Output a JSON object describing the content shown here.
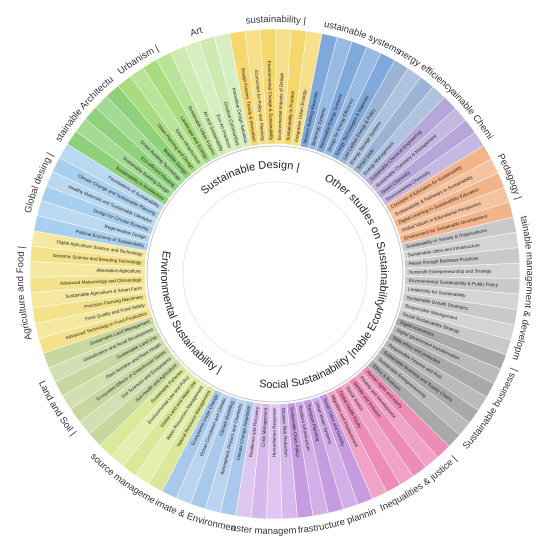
{
  "domains": [
    {
      "label": "Sustainable Design |",
      "groups": [
        {
          "label": "Sustainable Architecture |",
          "color": "#8fd17a",
          "items": [
            "Sustainability in Architecture",
            "Sustainable Building Design",
            "Eco-efficient Housing",
            "Green Building Technology",
            "Biophilic Design"
          ]
        },
        {
          "label": "Urbanism |",
          "color": "#a8dc7e",
          "items": [
            "Urban Planning and Design",
            "Green Infrastructure",
            "Landscape and Ecology",
            "Sustainable Urban Futures"
          ]
        },
        {
          "label": "Art",
          "color": "#cdeab0",
          "items": [
            "Art and Sustainability",
            "Eco-Art Practices",
            "Creative Communities",
            "Innovative Design Solutions"
          ]
        },
        {
          "label": "sustainability |",
          "color": "#f5d76e",
          "items": [
            "Design Futures, Trends & Innovation",
            "Economics for Policy and Planning",
            "Environmental Change & Sustainability",
            "Environmental Impacts of Design",
            "Sustainability in Practice",
            "Integrative Urban Ecology"
          ]
        },
        {
          "label": "Sustainable systems |",
          "color": "#7fa9dc",
          "items": [
            "Modern Building Materials",
            "Bioenergy Systems",
            "Renewable Energy Systems",
            "Design for Energy Efficiency",
            "Energy Technologies & Materials"
          ]
        }
      ]
    },
    {
      "label": "Other studies on Sustainability |",
      "groups": [
        {
          "label": "Energy efficiency |",
          "color": "#9bb4d6",
          "items": [
            "Low Carbon Energy & Policy",
            "Energy Storage Systems",
            "Smart Grids",
            "Energy Management"
          ]
        },
        {
          "label": "Sustainable Chemistry |",
          "color": "#b7a6d9",
          "items": [
            "Sustainable Chemical Engineering",
            "Sustainable Chemistry & Management",
            "Green Chemistry",
            "Environmental Chemistry"
          ]
        },
        {
          "label": "Pedagogy |",
          "color": "#f4b48a",
          "items": [
            "Concepts of Education for Sustainability",
            "Sustainability & Pathways to Sustainability",
            "Digital Learning in Sustainability Education",
            "Global Values in Educational Perspective",
            "Environment for Sustainable Development"
          ]
        },
        {
          "label": "Sustainable management & development",
          "color": "#c9c9c9",
          "items": [
            "Sustainability in Society & Organizations",
            "Sustainable cities and infrastructure",
            "Peace through Business Practices",
            "Nonprofit Entrepreneurship and Strategy",
            "Environmental Sustainability & Public Policy",
            "Leadership for Sustainability",
            "Sustainable Growth Strategies",
            "Responsible Management",
            "Social Sustainability Strategy"
          ]
        }
      ]
    },
    {
      "label": "Sustainable Economic |",
      "groups": [
        {
          "label": "Sustainable business |",
          "color": "#a9a9a9",
          "items": [
            "Digital economies",
            "Digital government transformation",
            "Data ethics and protection",
            "Responsible Finance and Risk",
            "Sustainable Business and Supply Chains",
            "Sustainable Entrepreneurship",
            "Ethics & Business"
          ]
        }
      ]
    },
    {
      "label": "Social Sustainability |",
      "groups": [
        {
          "label": "Inequalities & justice |",
          "color": "#ee8cb8",
          "items": [
            "Human rights and equity",
            "Poverty and Development",
            "Gender and Inclusion",
            "Social Justice",
            "Global Health Equity",
            "Migration and Displacement"
          ]
        },
        {
          "label": "Infrastructure planning |",
          "color": "#c79be0",
          "items": [
            "Smart Cities and Mobility",
            "Urban Water Systems",
            "Transport Planning",
            "Resilient Infrastructure",
            "Sustainable Cities Policy"
          ]
        },
        {
          "label": "Disaster management |",
          "color": "#d7b8ec",
          "items": [
            "Disaster Risk Reduction",
            "Humanitarian Response",
            "Crisis Management",
            "Resilience and Recovery"
          ]
        }
      ]
    },
    {
      "label": "Environmental Sustainability |",
      "groups": [
        {
          "label": "Climate & Environment |",
          "color": "#a8c8ec",
          "items": [
            "Climate Change Adaptation",
            "Atmospheric Physics and Chemistry",
            "Climate Modelling",
            "Ocean Circulation and Climate",
            "Ecosystems Under Change"
          ]
        },
        {
          "label": "Resource management |",
          "color": "#dbe89a",
          "items": [
            "Natural Resource Management",
            "Water Resources Management",
            "Global Land and Water Use",
            "Environmental Law and Policy",
            "Sustainable Fisheries"
          ]
        },
        {
          "label": "Land and Soil |",
          "color": "#c8d6a0",
          "items": [
            "Soil Health and Agriculture",
            "Soil Sciences and Ecosystems",
            "Ecosystem Effects of Greenhouse Gases",
            "Plant Nutrition and Plant Health",
            "Sustainable Land Use",
            "Globalization and Rural Development",
            "Sustainable Land Management"
          ]
        },
        {
          "label": "Agriculture and Food |",
          "color": "#f3e28a",
          "items": [
            "Advanced Technology in Food Production",
            "Food Quality and Food Safety",
            "Precision Farming Machinery",
            "Sustainable Agriculture & Smart Farm",
            "Advanced Meteorology and Climatology",
            "Alternative Agriculture",
            "Genomic Science and Breeding Technology",
            "Digital Agriculture Science and Technology"
          ]
        },
        {
          "label": "Global desing |",
          "color": "#a9cfee",
          "items": [
            "Political Economy of Sustainability",
            "Regenerative Design",
            "Design for Circular Economy",
            "Healthy Materials and Sustainable Lifestyles",
            "Climate Change and Sustainable Planning",
            "Foundations of Sustainability"
          ]
        }
      ]
    }
  ]
}
